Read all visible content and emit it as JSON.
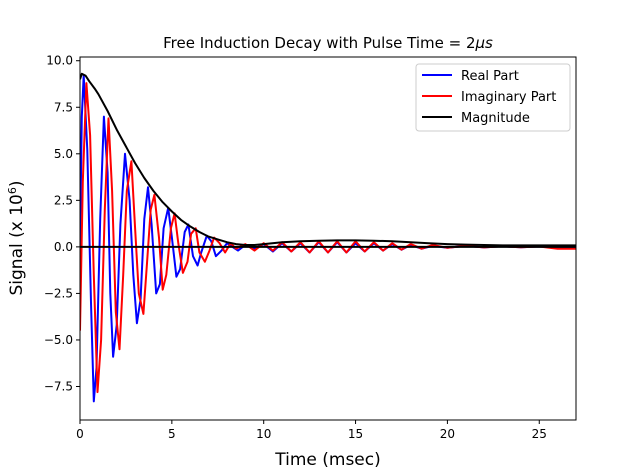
{
  "chart_data": {
    "type": "line",
    "title_prefix": "Free Induction Decay with Pulse Time = 2",
    "title_math": "μs",
    "xlabel": "Time (msec)",
    "ylabel_prefix": "Signal (x 10",
    "ylabel_exponent": "6",
    "ylabel_suffix": ")",
    "xlim": [
      0,
      27
    ],
    "ylim": [
      -9.3,
      10.2
    ],
    "xticks": [
      0,
      5,
      10,
      15,
      20,
      25
    ],
    "xtick_labels": [
      "0",
      "5",
      "10",
      "15",
      "20",
      "25"
    ],
    "yticks": [
      -7.5,
      -5.0,
      -2.5,
      0.0,
      2.5,
      5.0,
      7.5,
      10.0
    ],
    "ytick_labels": [
      "−7.5",
      "−5.0",
      "−2.5",
      "0.0",
      "2.5",
      "5.0",
      "7.5",
      "10.0"
    ],
    "grid": false,
    "legend_position": "top-right",
    "series": [
      {
        "name": "Real Part",
        "color": "#0000ff",
        "x": [
          0,
          0.1,
          0.2,
          0.4,
          0.6,
          0.75,
          0.9,
          1.1,
          1.3,
          1.5,
          1.65,
          1.8,
          2.0,
          2.2,
          2.45,
          2.7,
          2.9,
          3.1,
          3.3,
          3.5,
          3.7,
          3.9,
          4.15,
          4.35,
          4.55,
          4.8,
          5.0,
          5.25,
          5.45,
          5.7,
          5.9,
          6.15,
          6.4,
          6.6,
          6.9,
          7.15,
          7.4,
          7.7,
          8.0,
          8.3,
          8.6,
          9.0,
          9.5,
          10.0,
          10.5,
          11.0,
          11.5,
          12.0,
          12.5,
          13.0,
          13.5,
          14.0,
          14.5,
          15.0,
          15.5,
          16.0,
          16.5,
          17.0,
          17.5,
          18.0,
          18.6,
          19.2,
          20.0,
          21.0,
          22.0,
          23.0,
          24.0,
          25.0,
          26.0,
          27.0
        ],
        "y": [
          0.0,
          7.0,
          9.2,
          5.2,
          -3.0,
          -8.3,
          -6.5,
          1.5,
          7.0,
          4.0,
          -2.5,
          -5.9,
          -4.2,
          1.2,
          5.0,
          2.5,
          -1.5,
          -4.1,
          -2.8,
          1.5,
          3.2,
          1.2,
          -2.5,
          -2.0,
          1.0,
          2.1,
          0.5,
          -1.6,
          -1.2,
          0.8,
          1.2,
          -0.5,
          -1.0,
          -0.3,
          0.6,
          0.3,
          -0.5,
          -0.2,
          0.2,
          0.0,
          -0.2,
          0.1,
          -0.1,
          0.15,
          -0.25,
          0.2,
          -0.25,
          0.2,
          -0.3,
          0.25,
          -0.3,
          0.25,
          -0.3,
          0.2,
          -0.25,
          0.2,
          -0.2,
          0.15,
          -0.15,
          0.1,
          -0.1,
          0.05,
          -0.05,
          0.05,
          -0.03,
          0.03,
          -0.02,
          0.02,
          0.0,
          0.0
        ]
      },
      {
        "name": "Imaginary Part",
        "color": "#ff0000",
        "x": [
          0,
          0.15,
          0.35,
          0.55,
          0.75,
          0.95,
          1.15,
          1.35,
          1.55,
          1.75,
          1.95,
          2.15,
          2.35,
          2.55,
          2.8,
          3.0,
          3.2,
          3.45,
          3.65,
          3.85,
          4.05,
          4.3,
          4.5,
          4.7,
          4.95,
          5.15,
          5.35,
          5.6,
          5.85,
          6.05,
          6.3,
          6.5,
          6.8,
          7.05,
          7.3,
          7.6,
          7.9,
          8.2,
          8.5,
          9.0,
          9.5,
          10.0,
          10.5,
          11.0,
          11.5,
          12.0,
          12.5,
          13.0,
          13.5,
          14.0,
          14.5,
          15.0,
          15.5,
          16.0,
          16.5,
          17.0,
          17.5,
          18.0,
          18.6,
          19.2,
          20.0,
          21.0,
          22.0,
          23.0,
          24.0,
          25.0,
          26.0,
          27.0
        ],
        "y": [
          -4.5,
          3.5,
          8.8,
          6.0,
          -1.5,
          -7.8,
          -5.0,
          2.0,
          6.9,
          3.0,
          -3.5,
          -5.5,
          -1.5,
          3.0,
          4.6,
          1.0,
          -2.5,
          -3.6,
          -0.8,
          2.0,
          2.8,
          0.5,
          -2.3,
          -1.5,
          1.0,
          1.8,
          0.2,
          -1.4,
          -0.8,
          0.7,
          1.0,
          -0.3,
          -0.8,
          -0.2,
          0.5,
          0.2,
          -0.3,
          0.2,
          -0.1,
          0.15,
          -0.2,
          0.2,
          -0.2,
          0.25,
          -0.25,
          0.25,
          -0.3,
          0.3,
          -0.3,
          0.3,
          -0.3,
          0.3,
          -0.25,
          0.25,
          -0.2,
          0.2,
          -0.15,
          0.15,
          -0.1,
          0.1,
          -0.05,
          0.05,
          -0.03,
          0.03,
          -0.02,
          0.02,
          -0.1,
          -0.1
        ]
      },
      {
        "name": "Magnitude",
        "color": "#000000",
        "x": [
          0,
          0.1,
          0.3,
          0.5,
          0.8,
          1.0,
          1.5,
          2.0,
          2.5,
          3.0,
          3.5,
          4.0,
          4.5,
          5.0,
          5.5,
          6.0,
          6.5,
          7.0,
          7.5,
          8.0,
          8.5,
          9.0,
          9.5,
          10.0,
          11.0,
          12.0,
          13.0,
          14.0,
          15.0,
          16.0,
          17.0,
          18.0,
          19.0,
          20.0,
          21.0,
          22.0,
          23.0,
          24.0,
          25.0,
          26.0,
          27.0
        ],
        "y": [
          9.0,
          9.3,
          9.2,
          8.9,
          8.5,
          8.2,
          7.3,
          6.3,
          5.4,
          4.5,
          3.7,
          3.0,
          2.4,
          1.9,
          1.45,
          1.1,
          0.8,
          0.55,
          0.4,
          0.25,
          0.15,
          0.1,
          0.1,
          0.15,
          0.25,
          0.3,
          0.33,
          0.35,
          0.35,
          0.33,
          0.3,
          0.25,
          0.2,
          0.15,
          0.12,
          0.1,
          0.08,
          0.08,
          0.08,
          0.08,
          0.08
        ]
      }
    ]
  }
}
